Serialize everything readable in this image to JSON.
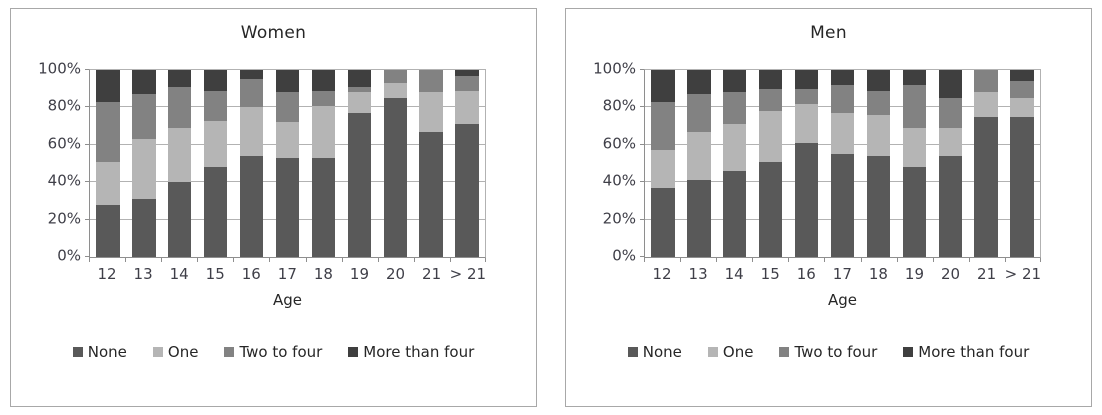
{
  "chart_data": [
    {
      "type": "bar",
      "stacked": true,
      "percent_stacked": true,
      "title": "Women",
      "xlabel": "Age",
      "ylabel": "",
      "ylim": [
        0,
        100
      ],
      "grid": true,
      "legend_position": "bottom",
      "y_tick_labels": [
        "0%",
        "20%",
        "40%",
        "60%",
        "80%",
        "100%"
      ],
      "categories": [
        "12",
        "13",
        "14",
        "15",
        "16",
        "17",
        "18",
        "19",
        "20",
        "21",
        "> 21"
      ],
      "series": [
        {
          "name": "None",
          "color": "#595959",
          "values": [
            28,
            31,
            40,
            48,
            54,
            53,
            53,
            77,
            85,
            67,
            71
          ]
        },
        {
          "name": "One",
          "color": "#b5b5b5",
          "values": [
            23,
            32,
            29,
            25,
            26,
            19,
            28,
            11,
            8,
            21,
            18
          ]
        },
        {
          "name": "Two to four",
          "color": "#828282",
          "values": [
            32,
            24,
            22,
            16,
            15,
            16,
            8,
            3,
            7,
            12,
            8
          ]
        },
        {
          "name": "More than four",
          "color": "#3f3f3f",
          "values": [
            17,
            13,
            9,
            11,
            5,
            12,
            11,
            9,
            0,
            0,
            3
          ]
        }
      ]
    },
    {
      "type": "bar",
      "stacked": true,
      "percent_stacked": true,
      "title": "Men",
      "xlabel": "Age",
      "ylabel": "",
      "ylim": [
        0,
        100
      ],
      "grid": true,
      "legend_position": "bottom",
      "y_tick_labels": [
        "0%",
        "20%",
        "40%",
        "60%",
        "80%",
        "100%"
      ],
      "categories": [
        "12",
        "13",
        "14",
        "15",
        "16",
        "17",
        "18",
        "19",
        "20",
        "21",
        "> 21"
      ],
      "series": [
        {
          "name": "None",
          "color": "#595959",
          "values": [
            37,
            41,
            46,
            51,
            61,
            55,
            54,
            48,
            54,
            75,
            75
          ]
        },
        {
          "name": "One",
          "color": "#b5b5b5",
          "values": [
            20,
            26,
            25,
            27,
            21,
            22,
            22,
            21,
            15,
            13,
            10
          ]
        },
        {
          "name": "Two to four",
          "color": "#828282",
          "values": [
            26,
            20,
            17,
            12,
            8,
            15,
            13,
            23,
            16,
            12,
            9
          ]
        },
        {
          "name": "More than four",
          "color": "#3f3f3f",
          "values": [
            17,
            13,
            12,
            10,
            10,
            8,
            11,
            8,
            15,
            0,
            6
          ]
        }
      ]
    }
  ],
  "colors": {
    "none": "#595959",
    "one": "#b5b5b5",
    "two_to_four": "#828282",
    "more_than_four": "#3f3f3f",
    "gridline": "#b2b2b2",
    "axis": "#8e8e8e",
    "tick_text": "#3f3f48",
    "title_text": "#262626"
  }
}
